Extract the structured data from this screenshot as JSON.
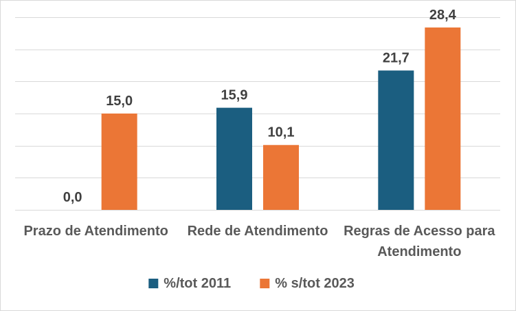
{
  "chart_data": {
    "type": "bar",
    "categories": [
      [
        "Prazo de Atendimento"
      ],
      [
        "Rede de Atendimento"
      ],
      [
        "Regras de Acesso para",
        "Atendimento"
      ]
    ],
    "series": [
      {
        "name": "%/tot 2011",
        "values": [
          0.0,
          15.9,
          21.7
        ],
        "labels": [
          "0,0",
          "15,9",
          "21,7"
        ],
        "color": "#1b5e80"
      },
      {
        "name": "% s/tot 2023",
        "values": [
          15.0,
          10.1,
          28.4
        ],
        "labels": [
          "15,0",
          "10,1",
          "28,4"
        ],
        "color": "#eb7636"
      }
    ],
    "title": "",
    "xlabel": "",
    "ylabel": "",
    "ylim": [
      0,
      30
    ],
    "grid": true,
    "legend_position": "bottom",
    "show_y_axis": false
  }
}
